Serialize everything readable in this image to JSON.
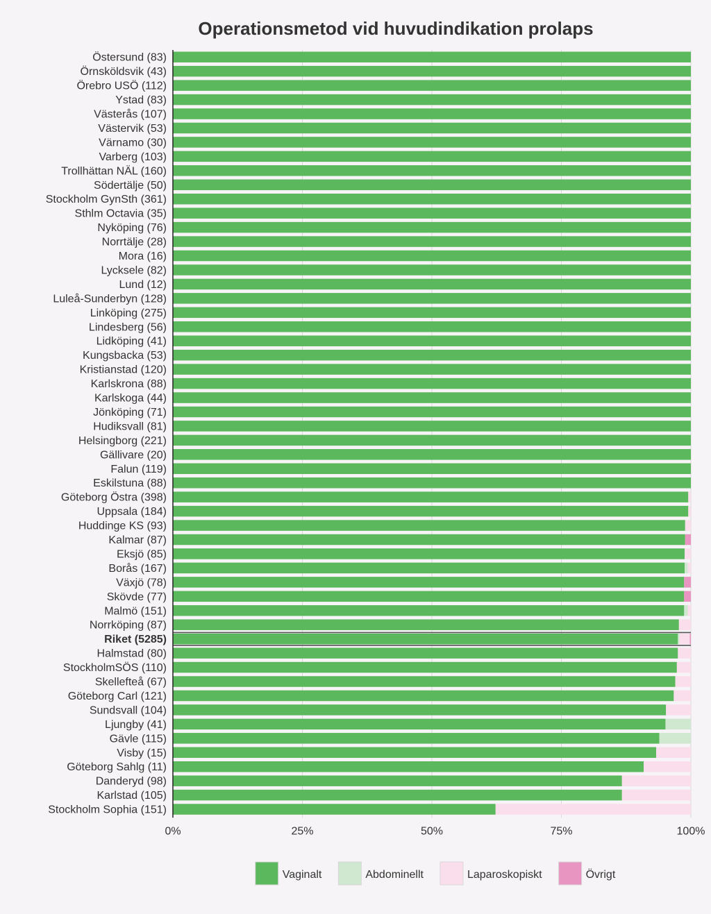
{
  "chart_data": {
    "type": "bar",
    "orientation": "horizontal",
    "stacked": true,
    "title": "Operationsmetod vid huvudindikation prolaps",
    "xlim": [
      0,
      100
    ],
    "x_ticks": [
      "0%",
      "25%",
      "50%",
      "75%",
      "100%"
    ],
    "grid": true,
    "legend_position": "bottom",
    "highlight_category": "Riket (5285)",
    "categories": [
      "Östersund (83)",
      "Örnsköldsvik (43)",
      "Örebro USÖ (112)",
      "Ystad (83)",
      "Västerås (107)",
      "Västervik (53)",
      "Värnamo (30)",
      "Varberg (103)",
      "Trollhättan NÄL (160)",
      "Södertälje (50)",
      "Stockholm GynSth (361)",
      "Sthlm Octavia (35)",
      "Nyköping (76)",
      "Norrtälje (28)",
      "Mora (16)",
      "Lycksele (82)",
      "Lund (12)",
      "Luleå-Sunderbyn (128)",
      "Linköping (275)",
      "Lindesberg (56)",
      "Lidköping (41)",
      "Kungsbacka (53)",
      "Kristianstad (120)",
      "Karlskrona (88)",
      "Karlskoga (44)",
      "Jönköping (71)",
      "Hudiksvall (81)",
      "Helsingborg (221)",
      "Gällivare (20)",
      "Falun (119)",
      "Eskilstuna (88)",
      "Göteborg Östra (398)",
      "Uppsala (184)",
      "Huddinge KS (93)",
      "Kalmar (87)",
      "Eksjö (85)",
      "Borås (167)",
      "Växjö (78)",
      "Skövde (77)",
      "Malmö (151)",
      "Norrköping (87)",
      "Riket (5285)",
      "Halmstad (80)",
      "StockholmSÖS (110)",
      "Skellefteå (67)",
      "Göteborg Carl (121)",
      "Sundsvall (104)",
      "Ljungby (41)",
      "Gävle (115)",
      "Visby (15)",
      "Göteborg Sahlg (11)",
      "Danderyd (98)",
      "Karlstad (105)",
      "Stockholm Sophia (151)"
    ],
    "series": [
      {
        "name": "Vaginalt",
        "color": "#5cb85c",
        "values": [
          100,
          100,
          100,
          100,
          100,
          100,
          100,
          100,
          100,
          100,
          100,
          100,
          100,
          100,
          100,
          100,
          100,
          100,
          100,
          100,
          100,
          100,
          100,
          100,
          100,
          100,
          100,
          100,
          100,
          100,
          100,
          99.5,
          99.5,
          98.9,
          98.9,
          98.8,
          98.8,
          98.7,
          98.7,
          98.7,
          97.7,
          97.5,
          97.5,
          97.3,
          97.0,
          96.7,
          95.2,
          95.1,
          93.9,
          93.3,
          90.9,
          86.7,
          86.7,
          62.3
        ]
      },
      {
        "name": "Abdominellt",
        "color": "#cfe8cf",
        "values": [
          0,
          0,
          0,
          0,
          0,
          0,
          0,
          0,
          0,
          0,
          0,
          0,
          0,
          0,
          0,
          0,
          0,
          0,
          0,
          0,
          0,
          0,
          0,
          0,
          0,
          0,
          0,
          0,
          0,
          0,
          0,
          0,
          0,
          0,
          0,
          0,
          0.6,
          0,
          0,
          0.7,
          0,
          0.3,
          0,
          0,
          0,
          0,
          0,
          4.9,
          6.1,
          0,
          0,
          0,
          0,
          0
        ]
      },
      {
        "name": "Laparoskopiskt",
        "color": "#fbdeec",
        "values": [
          0,
          0,
          0,
          0,
          0,
          0,
          0,
          0,
          0,
          0,
          0,
          0,
          0,
          0,
          0,
          0,
          0,
          0,
          0,
          0,
          0,
          0,
          0,
          0,
          0,
          0,
          0,
          0,
          0,
          0,
          0,
          0.5,
          0.5,
          1.1,
          0,
          1.2,
          0.6,
          0,
          0,
          0.6,
          2.3,
          2.0,
          2.5,
          2.7,
          3.0,
          3.3,
          4.8,
          0,
          0,
          6.7,
          9.1,
          13.3,
          13.3,
          37.7
        ]
      },
      {
        "name": "Övrigt",
        "color": "#e895c1",
        "values": [
          0,
          0,
          0,
          0,
          0,
          0,
          0,
          0,
          0,
          0,
          0,
          0,
          0,
          0,
          0,
          0,
          0,
          0,
          0,
          0,
          0,
          0,
          0,
          0,
          0,
          0,
          0,
          0,
          0,
          0,
          0,
          0,
          0,
          0,
          1.1,
          0,
          0,
          1.3,
          1.3,
          0,
          0,
          0.2,
          0,
          0,
          0,
          0,
          0,
          0,
          0,
          0,
          0,
          0,
          0,
          0
        ]
      }
    ]
  }
}
